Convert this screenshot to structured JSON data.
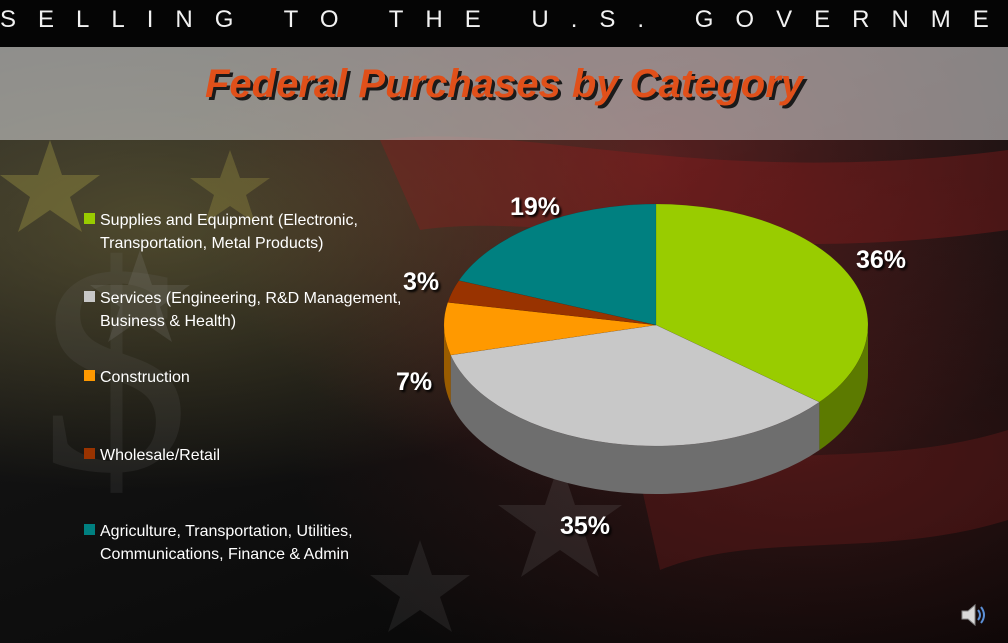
{
  "header": {
    "top_heading": "SELLING TO THE U.S. GOVERNMENT"
  },
  "chart_data": {
    "type": "pie",
    "title": "Federal Purchases by Category",
    "legend_position": "left",
    "three_d": true,
    "slices": [
      {
        "label": "Supplies and Equipment (Electronic, Transportation, Metal Products)",
        "value": 36,
        "display": "36%",
        "color": "#99cc00",
        "side_color": "#5c7a00"
      },
      {
        "label": "Services (Engineering, R&D Management, Business & Health)",
        "value": 35,
        "display": "35%",
        "color": "#c8c8c8",
        "side_color": "#6e6e6e"
      },
      {
        "label": "Construction",
        "value": 7,
        "display": "7%",
        "color": "#ff9900",
        "side_color": "#995c00"
      },
      {
        "label": "Wholesale/Retail",
        "value": 3,
        "display": "3%",
        "color": "#993300",
        "side_color": "#5c1f00"
      },
      {
        "label": "Agriculture, Transportation, Utilities, Communications, Finance & Admin",
        "value": 19,
        "display": "19%",
        "color": "#008080",
        "side_color": "#004d4d"
      }
    ]
  },
  "icons": {
    "speaker": "speaker-icon"
  }
}
